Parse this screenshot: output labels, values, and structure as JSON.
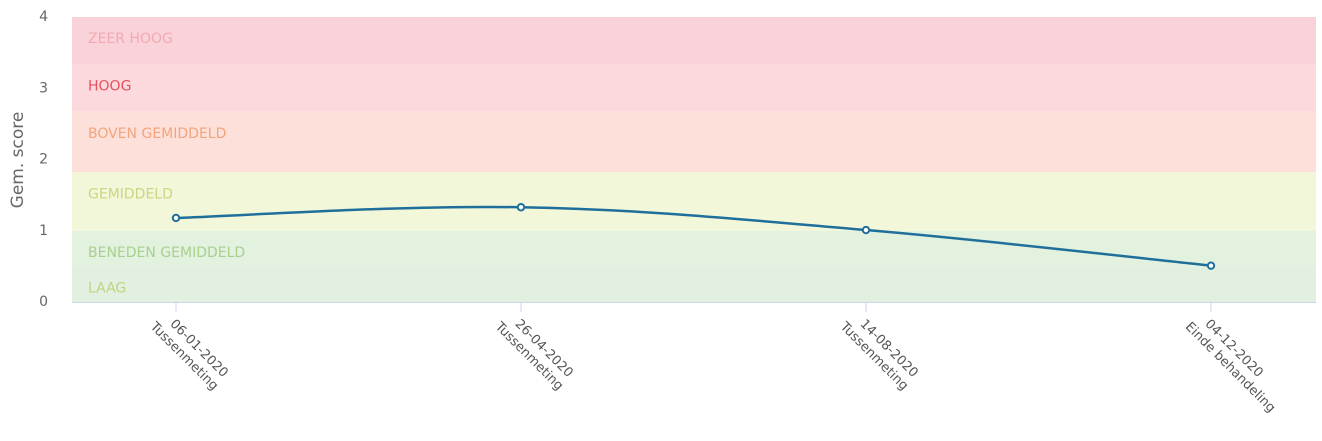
{
  "chart_data": {
    "type": "line",
    "ylabel": "Gem. score",
    "categories": [
      "06-01-2020",
      "26-04-2020",
      "14-08-2020",
      "04-12-2020"
    ],
    "category_notes": [
      "Tussenmeting",
      "Tussenmeting",
      "Tussenmeting",
      "Einde behandeling"
    ],
    "series": [
      {
        "name": "Gem. score",
        "color": "#1f6f9a",
        "values": [
          1.18,
          1.33,
          1.01,
          0.51
        ]
      }
    ],
    "ylim": [
      0,
      4
    ],
    "yticks": [
      0,
      1,
      2,
      3,
      4
    ],
    "bands": [
      {
        "label": "ZEER HOOG",
        "from": 3.33,
        "to": 4,
        "color": "#f9d3d9",
        "text_color": "#f2a9b3"
      },
      {
        "label": "HOOG",
        "from": 2.67,
        "to": 3.33,
        "color": "#fbd9dc",
        "text_color": "#e8505b"
      },
      {
        "label": "BOVEN GEMIDDELD",
        "from": 1.82,
        "to": 2.67,
        "color": "#fde0da",
        "text_color": "#f2a57c"
      },
      {
        "label": "GEMIDDELD",
        "from": 1,
        "to": 1.82,
        "color": "#f3f7da",
        "text_color": "#cdd57f"
      },
      {
        "label": "BENEDEN GEMIDDELD",
        "from": 0.5,
        "to": 1,
        "color": "#e3f1df",
        "text_color": "#a8d08f"
      },
      {
        "label": "LAAG",
        "from": 0,
        "to": 0.5,
        "color": "#e2f0e1",
        "text_color": "#bcd67f"
      }
    ]
  }
}
